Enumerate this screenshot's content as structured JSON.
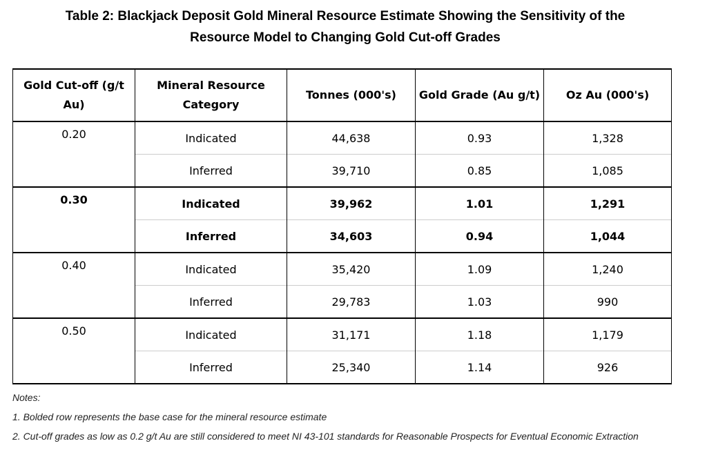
{
  "title_line1": "Table 2:  Blackjack Deposit Gold Mineral Resource Estimate Showing the Sensitivity of the",
  "title_line2": "Resource Model to Changing Gold Cut-off Grades",
  "headers": [
    "Gold Cut-off (g/t Au)",
    "Mineral Resource Category",
    "Tonnes (000's)",
    "Gold Grade (Au g/t)",
    "Oz Au (000's)"
  ],
  "groups": [
    {
      "cutoff": "0.20",
      "bold": false,
      "rows": [
        [
          "Indicated",
          "44,638",
          "0.93",
          "1,328"
        ],
        [
          "Inferred",
          "39,710",
          "0.85",
          "1,085"
        ]
      ]
    },
    {
      "cutoff": "0.30",
      "bold": true,
      "rows": [
        [
          "Indicated",
          "39,962",
          "1.01",
          "1,291"
        ],
        [
          "Inferred",
          "34,603",
          "0.94",
          "1,044"
        ]
      ]
    },
    {
      "cutoff": "0.40",
      "bold": false,
      "rows": [
        [
          "Indicated",
          "35,420",
          "1.09",
          "1,240"
        ],
        [
          "Inferred",
          "29,783",
          "1.03",
          "990"
        ]
      ]
    },
    {
      "cutoff": "0.50",
      "bold": false,
      "rows": [
        [
          "Indicated",
          "31,171",
          "1.18",
          "1,179"
        ],
        [
          "Inferred",
          "25,340",
          "1.14",
          "926"
        ]
      ]
    }
  ],
  "notes": [
    "Notes:",
    "1. Bolded row represents the base case for the mineral resource estimate",
    "2. Cut-off grades as low as 0.2 g/t Au are still considered to meet NI 43-101 standards for Reasonable Prospects for Eventual Economic Extraction"
  ]
}
